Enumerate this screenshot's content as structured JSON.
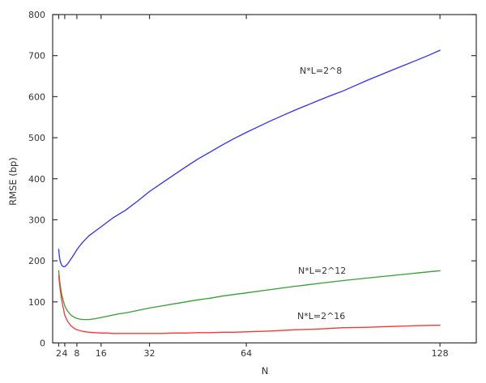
{
  "figure": {
    "background": "#ffffff",
    "axis_color": "#333333",
    "text_color": "#333333"
  },
  "chart_data": {
    "type": "line",
    "title": "",
    "xlabel": "N",
    "ylabel": "RMSE (bp)",
    "x_scale": "linear",
    "xlim": [
      0,
      140
    ],
    "ylim": [
      0,
      800
    ],
    "x_ticks": [
      2,
      4,
      8,
      16,
      32,
      64,
      128
    ],
    "y_ticks": [
      0,
      100,
      200,
      300,
      400,
      500,
      600,
      700,
      800
    ],
    "grid": false,
    "box": true,
    "series": [
      {
        "name": "N*L=2^8",
        "color": "#2f2fff",
        "points": [
          [
            2,
            228
          ],
          [
            2.2,
            212
          ],
          [
            2.5,
            199
          ],
          [
            3,
            189
          ],
          [
            3.5,
            186
          ],
          [
            4,
            186
          ],
          [
            4.5,
            189
          ],
          [
            5,
            193
          ],
          [
            6,
            204
          ],
          [
            7,
            215
          ],
          [
            8,
            227
          ],
          [
            9,
            237
          ],
          [
            10,
            246
          ],
          [
            12,
            261
          ],
          [
            14,
            272
          ],
          [
            16,
            283
          ],
          [
            18,
            294
          ],
          [
            20,
            305
          ],
          [
            22,
            314
          ],
          [
            24,
            323
          ],
          [
            26,
            334
          ],
          [
            28,
            345
          ],
          [
            30,
            357
          ],
          [
            32,
            369
          ],
          [
            36,
            389
          ],
          [
            40,
            409
          ],
          [
            44,
            429
          ],
          [
            48,
            448
          ],
          [
            52,
            465
          ],
          [
            56,
            482
          ],
          [
            60,
            498
          ],
          [
            64,
            513
          ],
          [
            68,
            527
          ],
          [
            72,
            541
          ],
          [
            76,
            554
          ],
          [
            80,
            567
          ],
          [
            84,
            579
          ],
          [
            88,
            591
          ],
          [
            92,
            603
          ],
          [
            96,
            614
          ],
          [
            100,
            627
          ],
          [
            104,
            640
          ],
          [
            108,
            652
          ],
          [
            112,
            664
          ],
          [
            116,
            676
          ],
          [
            120,
            688
          ],
          [
            124,
            700
          ],
          [
            128,
            713
          ]
        ]
      },
      {
        "name": "N*L=2^12",
        "color": "#33a033",
        "points": [
          [
            2,
            176
          ],
          [
            2.2,
            160
          ],
          [
            2.5,
            141
          ],
          [
            3,
            118
          ],
          [
            3.5,
            103
          ],
          [
            4,
            91
          ],
          [
            4.5,
            83
          ],
          [
            5,
            77
          ],
          [
            6,
            68
          ],
          [
            7,
            63
          ],
          [
            8,
            60
          ],
          [
            9,
            58
          ],
          [
            10,
            57
          ],
          [
            12,
            57
          ],
          [
            14,
            59
          ],
          [
            16,
            62
          ],
          [
            18,
            65
          ],
          [
            20,
            68
          ],
          [
            22,
            71
          ],
          [
            24,
            73
          ],
          [
            28,
            79
          ],
          [
            32,
            85
          ],
          [
            36,
            90
          ],
          [
            40,
            95
          ],
          [
            44,
            100
          ],
          [
            48,
            105
          ],
          [
            52,
            109
          ],
          [
            56,
            114
          ],
          [
            60,
            118
          ],
          [
            64,
            122
          ],
          [
            72,
            130
          ],
          [
            80,
            138
          ],
          [
            88,
            145
          ],
          [
            96,
            152
          ],
          [
            104,
            158
          ],
          [
            112,
            164
          ],
          [
            120,
            170
          ],
          [
            128,
            176
          ]
        ]
      },
      {
        "name": "N*L=2^16",
        "color": "#ff3333",
        "points": [
          [
            2,
            165
          ],
          [
            2.2,
            150
          ],
          [
            2.5,
            130
          ],
          [
            3,
            104
          ],
          [
            3.5,
            85
          ],
          [
            4,
            68
          ],
          [
            4.5,
            59
          ],
          [
            5,
            52
          ],
          [
            6,
            42
          ],
          [
            7,
            36
          ],
          [
            8,
            32
          ],
          [
            9,
            30
          ],
          [
            10,
            28
          ],
          [
            12,
            26
          ],
          [
            14,
            25
          ],
          [
            16,
            24
          ],
          [
            18,
            24
          ],
          [
            20,
            23
          ],
          [
            24,
            23
          ],
          [
            28,
            23
          ],
          [
            32,
            23
          ],
          [
            36,
            23
          ],
          [
            40,
            24
          ],
          [
            44,
            24
          ],
          [
            48,
            25
          ],
          [
            52,
            25
          ],
          [
            56,
            26
          ],
          [
            60,
            26
          ],
          [
            64,
            27
          ],
          [
            72,
            29
          ],
          [
            80,
            32
          ],
          [
            88,
            34
          ],
          [
            96,
            37
          ],
          [
            104,
            38
          ],
          [
            112,
            40
          ],
          [
            120,
            42
          ],
          [
            128,
            43
          ]
        ]
      }
    ],
    "annotations": [
      {
        "text": "N*L=2^8"
      },
      {
        "text": "N*L=2^12"
      },
      {
        "text": "N*L=2^16"
      }
    ]
  }
}
